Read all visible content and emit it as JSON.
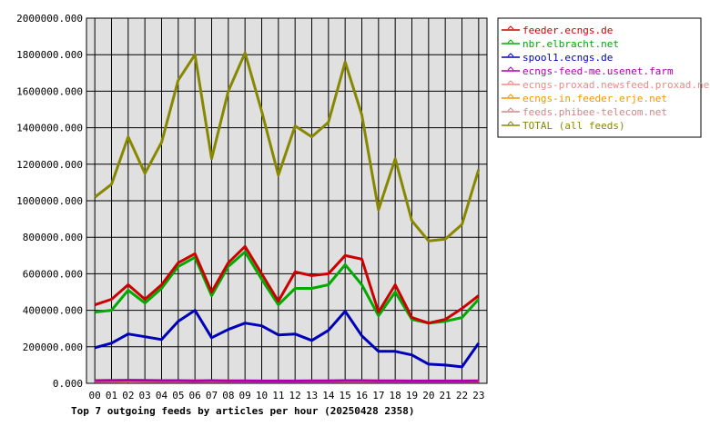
{
  "chart_data": {
    "type": "line",
    "title": "Top 7 outgoing feeds by articles per hour (20250428 2358)",
    "xlabel": "",
    "ylabel": "",
    "categories": [
      "00",
      "01",
      "02",
      "03",
      "04",
      "05",
      "06",
      "07",
      "08",
      "09",
      "10",
      "11",
      "12",
      "13",
      "14",
      "15",
      "16",
      "17",
      "18",
      "19",
      "20",
      "21",
      "22",
      "23"
    ],
    "ylim": [
      0,
      2000000
    ],
    "yticks": [
      0,
      200000,
      400000,
      600000,
      800000,
      1000000,
      1200000,
      1400000,
      1600000,
      1800000,
      2000000
    ],
    "ytick_labels": [
      "0.000",
      "200000.000",
      "400000.000",
      "600000.000",
      "800000.000",
      "1000000.000",
      "1200000.000",
      "1400000.000",
      "1600000.000",
      "1800000.000",
      "2000000.000"
    ],
    "grid": true,
    "legend_position": "right",
    "series": [
      {
        "name": "feeder.ecngs.de",
        "color": "#cc0000",
        "values": [
          430000,
          460000,
          540000,
          460000,
          540000,
          660000,
          710000,
          500000,
          660000,
          750000,
          600000,
          450000,
          610000,
          590000,
          600000,
          700000,
          680000,
          390000,
          540000,
          360000,
          330000,
          350000,
          410000,
          480000
        ]
      },
      {
        "name": "nbr.elbracht.net",
        "color": "#00aa00",
        "values": [
          390000,
          400000,
          510000,
          440000,
          520000,
          640000,
          690000,
          480000,
          640000,
          720000,
          570000,
          430000,
          520000,
          520000,
          540000,
          650000,
          540000,
          370000,
          500000,
          350000,
          330000,
          340000,
          360000,
          460000
        ]
      },
      {
        "name": "spool1.ecngs.de",
        "color": "#0000bb",
        "values": [
          195000,
          220000,
          270000,
          255000,
          240000,
          340000,
          400000,
          250000,
          295000,
          330000,
          315000,
          265000,
          270000,
          235000,
          290000,
          395000,
          260000,
          175000,
          175000,
          155000,
          105000,
          100000,
          90000,
          220000
        ]
      },
      {
        "name": "ecngs-feed-me.usenet.farm",
        "color": "#aa00aa",
        "values": [
          15000,
          16000,
          17000,
          16000,
          15000,
          15000,
          14000,
          15000,
          14000,
          14000,
          13000,
          13000,
          13000,
          14000,
          14000,
          15000,
          15000,
          14000,
          14000,
          13000,
          13000,
          13000,
          13000,
          14000
        ]
      },
      {
        "name": "ecngs-proxad.newsfeed.proxad.net",
        "color": "#ee8888",
        "values": [
          12000,
          12000,
          13000,
          12000,
          12000,
          12000,
          11000,
          12000,
          11000,
          11000,
          10000,
          10000,
          10000,
          11000,
          11000,
          12000,
          12000,
          11000,
          11000,
          10000,
          10000,
          10000,
          10000,
          11000
        ]
      },
      {
        "name": "ecngs-in.feeder.erje.net",
        "color": "#ee9900",
        "values": [
          10000,
          10000,
          11000,
          10000,
          10000,
          10000,
          9000,
          10000,
          9000,
          9000,
          8000,
          8000,
          8000,
          9000,
          9000,
          10000,
          10000,
          9000,
          9000,
          8000,
          8000,
          8000,
          8000,
          9000
        ]
      },
      {
        "name": "feeds.phibee-telecom.net",
        "color": "#cc8888",
        "values": [
          14000,
          14000,
          15000,
          14000,
          13000,
          13000,
          12000,
          13000,
          12000,
          12000,
          11000,
          11000,
          11000,
          12000,
          12000,
          13000,
          13000,
          12000,
          12000,
          11000,
          11000,
          11000,
          11000,
          12000
        ]
      },
      {
        "name": "TOTAL (all feeds)",
        "color": "#888800",
        "values": [
          1020000,
          1090000,
          1350000,
          1150000,
          1320000,
          1660000,
          1800000,
          1230000,
          1600000,
          1810000,
          1490000,
          1140000,
          1410000,
          1350000,
          1430000,
          1760000,
          1470000,
          950000,
          1230000,
          890000,
          780000,
          790000,
          870000,
          1170000
        ]
      }
    ]
  }
}
